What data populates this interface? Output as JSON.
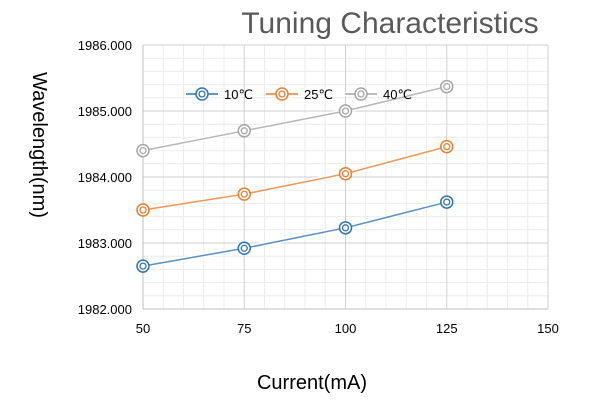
{
  "chart_data": {
    "type": "line",
    "title": "Tuning Characteristics",
    "xlabel": "Current(mA)",
    "ylabel": "Wavelength(nm)",
    "xlim": [
      50,
      150
    ],
    "ylim": [
      1982.0,
      1986.0
    ],
    "x_ticks": [
      "50",
      "75",
      "100",
      "125",
      "150"
    ],
    "y_ticks": [
      "1982.000",
      "1983.000",
      "1984.000",
      "1985.000",
      "1986.000"
    ],
    "grid": true,
    "legend_position": "top-inside",
    "x": [
      50,
      75,
      100,
      125
    ],
    "series": [
      {
        "name": "10℃",
        "color": "#2e75b6",
        "values": [
          1982.65,
          1982.92,
          1983.23,
          1983.62
        ]
      },
      {
        "name": "25℃",
        "color": "#ed7d31",
        "values": [
          1983.5,
          1983.74,
          1984.05,
          1984.46
        ]
      },
      {
        "name": "40℃",
        "color": "#a5a5a5",
        "values": [
          1984.4,
          1984.7,
          1985.0,
          1985.37
        ]
      }
    ]
  }
}
